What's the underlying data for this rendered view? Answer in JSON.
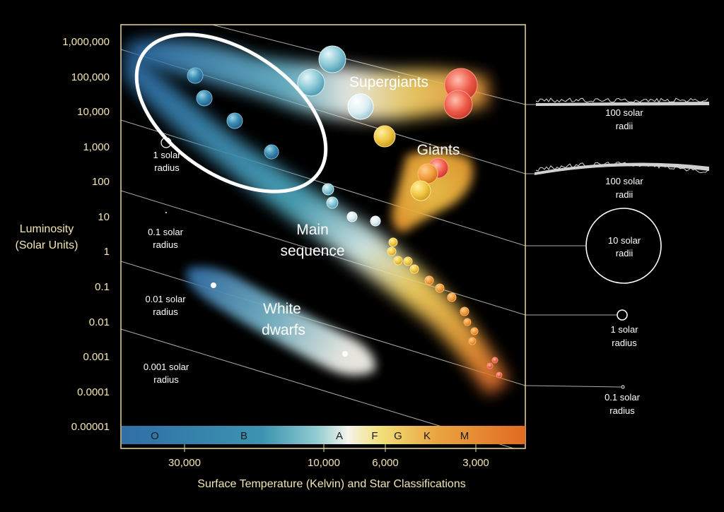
{
  "luminosity_ticks": [
    "1,000,000",
    "100,000",
    "10,000",
    "1,000",
    "100",
    "10",
    "1",
    "0.1",
    "0.01",
    "0.001",
    "0.0001",
    "0.00001"
  ],
  "luminosity_axis": {
    "line1": "Luminosity",
    "line2": "(Solar Units)"
  },
  "temperature_ticks": [
    "30,000",
    "10,000",
    "6,000",
    "3,000"
  ],
  "temperature_axis": "Surface Temperature (Kelvin) and Star Classifications",
  "classes": [
    "O",
    "B",
    "A",
    "F",
    "G",
    "K",
    "M"
  ],
  "regions": {
    "supergiants": "Supergiants",
    "giants": "Giants",
    "main_sequence": {
      "line1": "Main",
      "line2": "sequence"
    },
    "white_dwarfs": {
      "line1": "White",
      "line2": "dwarfs"
    }
  },
  "inner_radius_labels": [
    {
      "line1": "1 solar",
      "line2": "radius"
    },
    {
      "line1": "0.1 solar",
      "line2": "radius"
    },
    {
      "line1": "0.01 solar",
      "line2": "radius"
    },
    {
      "line1": "0.001 solar",
      "line2": "radius"
    }
  ],
  "outer_radius_labels": [
    {
      "line1": "100 solar",
      "line2": "radii"
    },
    {
      "line1": "100 solar",
      "line2": "radii"
    },
    {
      "line1": "10 solar",
      "line2": "radii"
    },
    {
      "line1": "1 solar",
      "line2": "radius"
    },
    {
      "line1": "0.1 solar",
      "line2": "radius"
    }
  ],
  "colors": {
    "frame": "#e8d9a0",
    "tick_text": "#f3e6b3",
    "highlight_ellipse": "#ffffff"
  }
}
